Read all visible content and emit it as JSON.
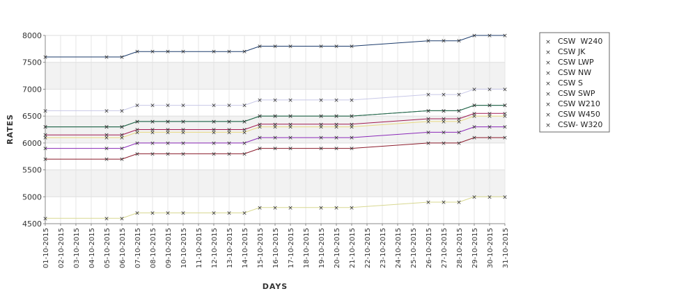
{
  "chart_data": {
    "type": "line",
    "xlabel": "DAYS",
    "ylabel": "RATES",
    "ylim": [
      4500,
      8000
    ],
    "yticks": [
      4500,
      5000,
      5500,
      6000,
      6500,
      7000,
      7500,
      8000
    ],
    "grid": true,
    "legend_position": "right",
    "categories": [
      "01-10-2015",
      "02-10-2015",
      "03-10-2015",
      "04-10-2015",
      "05-10-2015",
      "06-10-2015",
      "07-10-2015",
      "08-10-2015",
      "09-10-2015",
      "10-10-2015",
      "11-10-2015",
      "12-10-2015",
      "13-10-2015",
      "14-10-2015",
      "15-10-2015",
      "16-10-2015",
      "17-10-2015",
      "18-10-2015",
      "19-10-2015",
      "20-10-2015",
      "21-10-2015",
      "22-10-2015",
      "23-10-2015",
      "24-10-2015",
      "25-10-2015",
      "26-10-2015",
      "27-10-2015",
      "28-10-2015",
      "29-10-2015",
      "30-10-2015",
      "31-10-2015"
    ],
    "series": [
      {
        "name": "CSW  W240",
        "color": "#c8c8e8",
        "values": [
          6600,
          null,
          null,
          null,
          6600,
          6600,
          6700,
          6700,
          6700,
          6700,
          null,
          6700,
          6700,
          6700,
          6800,
          6800,
          6800,
          null,
          6800,
          6800,
          6800,
          null,
          null,
          null,
          null,
          6900,
          6900,
          6900,
          7000,
          7000,
          7000
        ]
      },
      {
        "name": "CSW JK",
        "color": "#a01850",
        "values": [
          6150,
          null,
          null,
          null,
          6150,
          6150,
          6250,
          6250,
          6250,
          6250,
          null,
          6250,
          6250,
          6250,
          6350,
          6350,
          6350,
          null,
          6350,
          6350,
          6350,
          null,
          null,
          null,
          null,
          6450,
          6450,
          6450,
          6550,
          6550,
          6550
        ]
      },
      {
        "name": "CSW LWP",
        "color": "#1a3a6a",
        "values": [
          7600,
          null,
          null,
          null,
          7600,
          7600,
          7700,
          7700,
          7700,
          7700,
          null,
          7700,
          7700,
          7700,
          7800,
          7800,
          7800,
          null,
          7800,
          7800,
          7800,
          null,
          null,
          null,
          null,
          7900,
          7900,
          7900,
          8000,
          8000,
          8000
        ]
      },
      {
        "name": "CSW NW",
        "color": "#8a28b8",
        "values": [
          5900,
          null,
          null,
          null,
          5900,
          5900,
          6000,
          6000,
          6000,
          6000,
          null,
          6000,
          6000,
          6000,
          6100,
          6100,
          6100,
          null,
          6100,
          6100,
          6100,
          null,
          null,
          null,
          null,
          6200,
          6200,
          6200,
          6300,
          6300,
          6300
        ]
      },
      {
        "name": "CSW S",
        "color": "#8a1a2a",
        "values": [
          5700,
          null,
          null,
          null,
          5700,
          5700,
          5800,
          5800,
          5800,
          5800,
          null,
          5800,
          5800,
          5800,
          5900,
          5900,
          5900,
          null,
          5900,
          5900,
          5900,
          null,
          null,
          null,
          null,
          6000,
          6000,
          6000,
          6100,
          6100,
          6100
        ]
      },
      {
        "name": "CSW SWP",
        "color": "#d8d890",
        "values": [
          4600,
          null,
          null,
          null,
          4600,
          4600,
          4700,
          4700,
          4700,
          4700,
          null,
          4700,
          4700,
          4700,
          4800,
          4800,
          4800,
          null,
          4800,
          4800,
          4800,
          null,
          null,
          null,
          null,
          4900,
          4900,
          4900,
          5000,
          5000,
          5000
        ]
      },
      {
        "name": "CSW W210",
        "color": "#0a5a5a",
        "values": [
          6300,
          null,
          null,
          null,
          6300,
          6300,
          6400,
          6400,
          6400,
          6400,
          null,
          6400,
          6400,
          6400,
          6500,
          6500,
          6500,
          null,
          6500,
          6500,
          6500,
          null,
          null,
          null,
          null,
          6600,
          6600,
          6600,
          6700,
          6700,
          6700
        ]
      },
      {
        "name": "CSW W450",
        "color": "#e8d880",
        "values": [
          6100,
          null,
          null,
          null,
          6100,
          6100,
          6200,
          6200,
          6200,
          6200,
          null,
          6200,
          6200,
          6200,
          6300,
          6300,
          6300,
          null,
          6300,
          6300,
          6300,
          null,
          null,
          null,
          null,
          6400,
          6400,
          6400,
          6500,
          6500,
          6500
        ]
      },
      {
        "name": "CSW- W320",
        "color": "#2a6a4a",
        "values": [
          6300,
          null,
          null,
          null,
          6300,
          6300,
          6400,
          6400,
          6400,
          6400,
          null,
          6400,
          6400,
          6400,
          6500,
          6500,
          6500,
          null,
          6500,
          6500,
          6500,
          null,
          null,
          null,
          null,
          6600,
          6600,
          6600,
          6700,
          6700,
          6700
        ]
      }
    ]
  }
}
